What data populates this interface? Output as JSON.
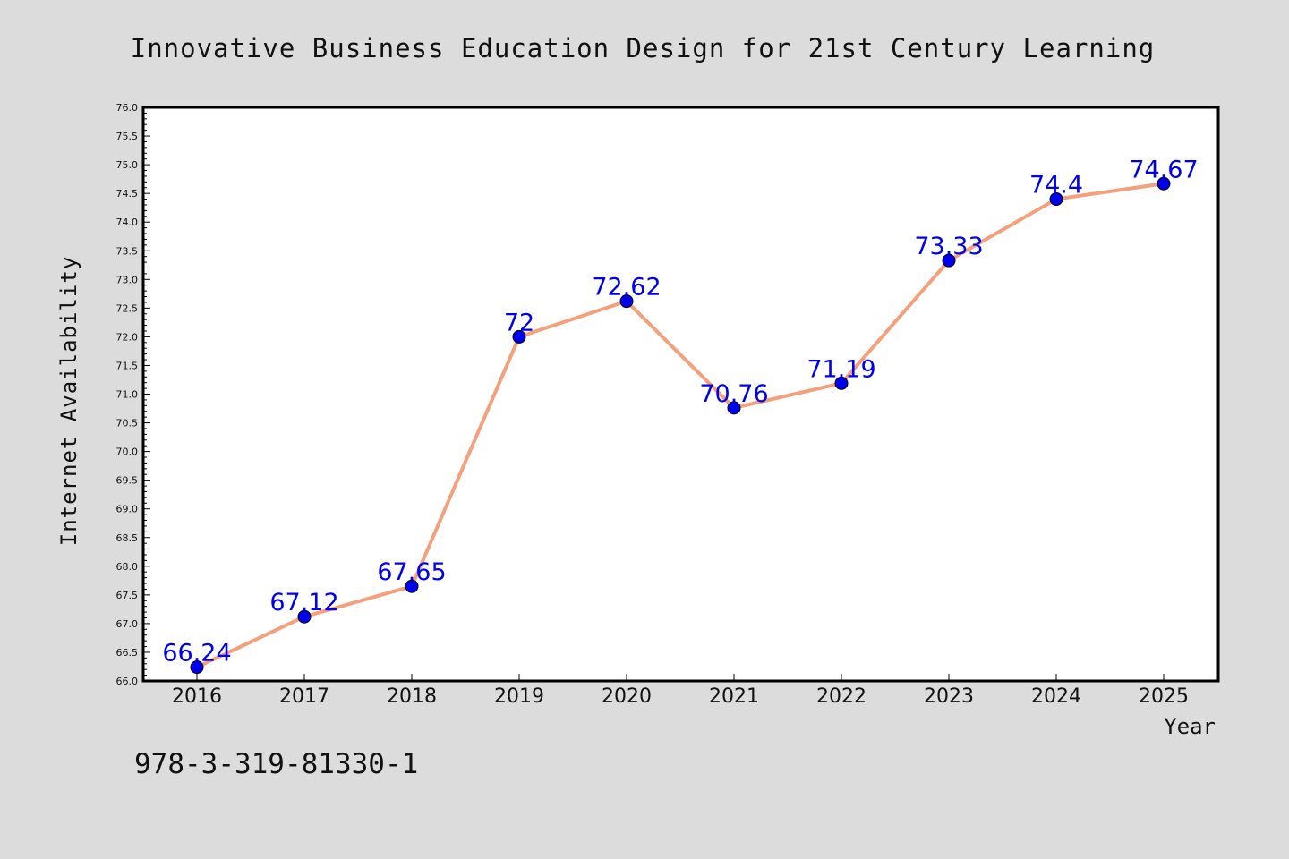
{
  "chart_data": {
    "type": "line",
    "title": "Innovative Business Education Design for 21st Century Learning",
    "xlabel": "Year",
    "ylabel": "Internet Availability",
    "categories": [
      "2016",
      "2017",
      "2018",
      "2019",
      "2020",
      "2021",
      "2022",
      "2023",
      "2024",
      "2025"
    ],
    "series": [
      {
        "values": [
          66.24,
          67.12,
          67.65,
          72,
          72.62,
          70.76,
          71.19,
          73.33,
          74.4,
          74.67
        ],
        "line_color": "#f4a07c",
        "marker_color": "#0000ee"
      }
    ],
    "data_labels": [
      "66.24",
      "67.12",
      "67.65",
      "72",
      "72.62",
      "70.76",
      "71.19",
      "73.33",
      "74.4",
      "74.67"
    ],
    "ylim": [
      66.0,
      76.0
    ],
    "yticks": [
      "66.0",
      "66.5",
      "67.0",
      "67.5",
      "68.0",
      "68.5",
      "69.0",
      "69.5",
      "70.0",
      "70.5",
      "71.0",
      "71.5",
      "72.0",
      "72.5",
      "73.0",
      "73.5",
      "74.0",
      "74.5",
      "75.0",
      "75.5",
      "76.0"
    ],
    "grid": false,
    "label_color": "#0000ee",
    "footer_text": "978-3-319-81330-1"
  }
}
